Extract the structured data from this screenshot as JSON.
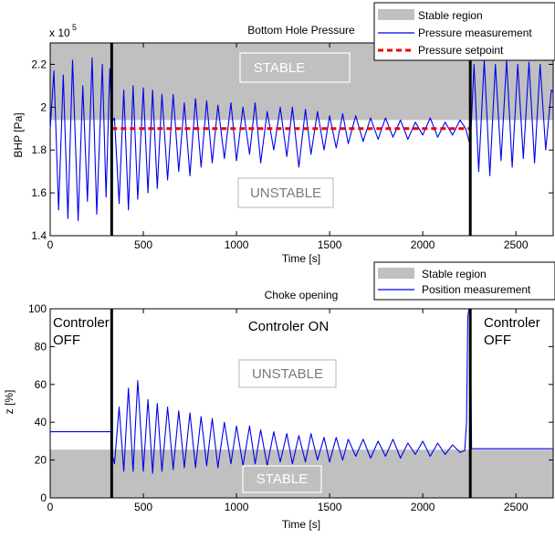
{
  "chart_data": [
    {
      "type": "line",
      "title": "Bottom Hole Pressure",
      "xlabel": "Time [s]",
      "ylabel": "BHP [Pa]",
      "y_multiplier": "x 10",
      "y_multiplier_exp": "5",
      "xlim": [
        0,
        2700
      ],
      "ylim": [
        1.4,
        2.3
      ],
      "x_ticks": [
        0,
        500,
        1000,
        1500,
        2000,
        2500
      ],
      "y_ticks": [
        1.4,
        1.6,
        1.8,
        2,
        2.2
      ],
      "y_tick_labels": [
        "1.4",
        "1.6",
        "1.8",
        "2",
        "2.2"
      ],
      "stable_band": [
        1.94,
        2.3
      ],
      "controller_lines": [
        330,
        2255
      ],
      "annotations": {
        "upper": "STABLE",
        "lower": "UNSTABLE"
      },
      "legend": [
        "Stable region",
        "Pressure measurement",
        "Pressure setpoint"
      ],
      "setpoint": {
        "x": [
          330,
          2255
        ],
        "y": 1.9
      },
      "series": [
        {
          "name": "Pressure measurement",
          "x": [
            0,
            20,
            45,
            70,
            95,
            120,
            150,
            175,
            200,
            225,
            250,
            280,
            300,
            320,
            332,
            345,
            370,
            395,
            420,
            445,
            470,
            500,
            525,
            550,
            575,
            600,
            630,
            660,
            690,
            720,
            750,
            780,
            810,
            840,
            870,
            900,
            935,
            970,
            1000,
            1035,
            1070,
            1100,
            1130,
            1165,
            1200,
            1235,
            1270,
            1300,
            1335,
            1370,
            1400,
            1435,
            1470,
            1500,
            1535,
            1570,
            1600,
            1640,
            1680,
            1720,
            1760,
            1800,
            1840,
            1880,
            1920,
            1960,
            2000,
            2040,
            2080,
            2120,
            2160,
            2200,
            2230,
            2255,
            2275,
            2300,
            2330,
            2360,
            2390,
            2420,
            2450,
            2480,
            2510,
            2540,
            2570,
            2600,
            2630,
            2660,
            2690,
            2700
          ],
          "y": [
            1.9,
            2.17,
            1.52,
            2.15,
            1.48,
            2.22,
            1.47,
            2.1,
            1.56,
            2.23,
            1.5,
            2.2,
            1.58,
            2.18,
            1.93,
            1.95,
            1.55,
            2.08,
            1.52,
            2.1,
            1.57,
            2.09,
            1.6,
            2.08,
            1.62,
            2.06,
            1.66,
            2.06,
            1.7,
            2.02,
            1.68,
            2.04,
            1.72,
            2.03,
            1.74,
            2.01,
            1.76,
            2.02,
            1.75,
            2.0,
            1.78,
            2.02,
            1.74,
            1.98,
            1.8,
            2.0,
            1.77,
            2.0,
            1.72,
            1.99,
            1.78,
            1.98,
            1.8,
            1.96,
            1.81,
            1.97,
            1.83,
            1.96,
            1.84,
            1.95,
            1.85,
            1.95,
            1.86,
            1.94,
            1.85,
            1.93,
            1.87,
            1.95,
            1.86,
            1.93,
            1.87,
            1.94,
            1.9,
            1.82,
            2.2,
            1.7,
            2.22,
            1.68,
            2.2,
            1.75,
            2.22,
            1.72,
            2.2,
            1.76,
            2.21,
            1.74,
            2.2,
            1.8,
            2.08,
            2.07
          ]
        }
      ]
    },
    {
      "type": "line",
      "title": "Choke opening",
      "xlabel": "Time [s]",
      "ylabel": "z [%]",
      "xlim": [
        0,
        2700
      ],
      "ylim": [
        0,
        100
      ],
      "x_ticks": [
        0,
        500,
        1000,
        1500,
        2000,
        2500
      ],
      "y_ticks": [
        0,
        20,
        40,
        60,
        80,
        100
      ],
      "y_tick_labels": [
        "0",
        "20",
        "40",
        "60",
        "80",
        "100"
      ],
      "stable_band": [
        0,
        25.5
      ],
      "controller_lines": [
        330,
        2255
      ],
      "annotations": {
        "upper": "UNSTABLE",
        "lower": "STABLE",
        "left_line1": "Controler",
        "left_line2": "OFF",
        "middle": "Controler ON",
        "right_line1": "Controler",
        "right_line2": "OFF"
      },
      "legend": [
        "Stable region",
        "Position measurement"
      ],
      "series": [
        {
          "name": "Position measurement",
          "x": [
            0,
            330,
            335,
            345,
            370,
            395,
            420,
            445,
            470,
            500,
            525,
            550,
            575,
            600,
            630,
            660,
            690,
            720,
            750,
            780,
            810,
            840,
            870,
            900,
            935,
            970,
            1000,
            1035,
            1070,
            1100,
            1130,
            1165,
            1200,
            1235,
            1270,
            1300,
            1335,
            1370,
            1400,
            1435,
            1470,
            1500,
            1535,
            1570,
            1600,
            1640,
            1680,
            1720,
            1760,
            1800,
            1840,
            1880,
            1920,
            1960,
            2000,
            2040,
            2080,
            2120,
            2160,
            2200,
            2225,
            2235,
            2242,
            2248,
            2255,
            2262,
            2700
          ],
          "y": [
            35,
            35,
            22,
            18,
            48,
            14,
            58,
            14,
            62,
            14,
            52,
            13,
            50,
            14,
            48,
            15,
            46,
            16,
            45,
            16,
            43,
            17,
            42,
            16,
            40,
            18,
            38,
            17,
            38,
            18,
            36,
            17,
            35,
            19,
            34,
            18,
            33,
            19,
            34,
            20,
            32,
            19,
            32,
            20,
            31,
            22,
            31,
            21,
            30,
            22,
            31,
            21,
            29,
            23,
            30,
            22,
            29,
            23,
            28,
            24,
            25,
            40,
            96,
            100,
            99,
            26,
            26
          ]
        }
      ]
    }
  ]
}
